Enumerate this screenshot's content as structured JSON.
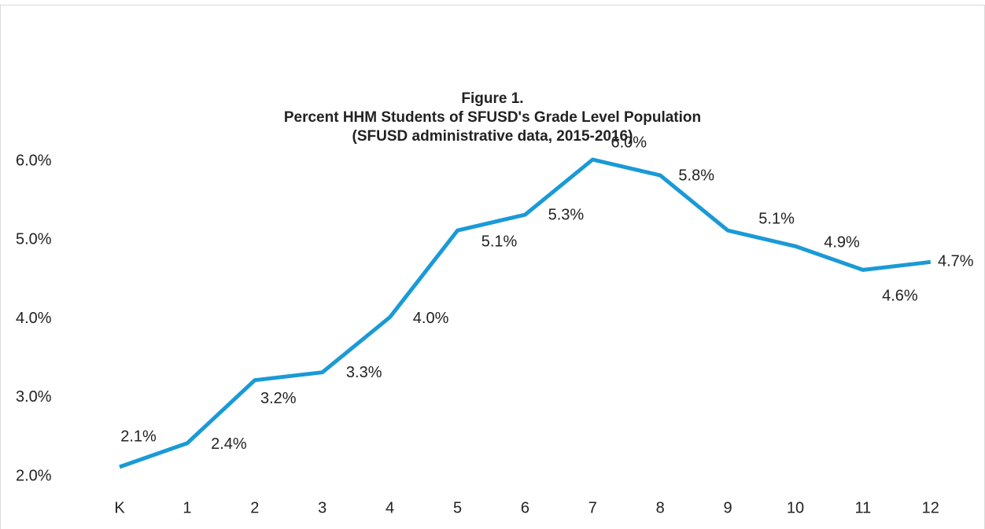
{
  "chart_data": {
    "type": "line",
    "title": [
      "Figure 1.",
      "Percent HHM Students of SFUSD's Grade Level Population",
      "(SFUSD administrative data, 2015-2016)"
    ],
    "categories": [
      "K",
      "1",
      "2",
      "3",
      "4",
      "5",
      "6",
      "7",
      "8",
      "9",
      "10",
      "11",
      "12"
    ],
    "values": [
      2.1,
      2.4,
      3.2,
      3.3,
      4.0,
      5.1,
      5.3,
      6.0,
      5.8,
      5.1,
      4.9,
      4.6,
      4.7
    ],
    "value_labels": [
      "2.1%",
      "2.4%",
      "3.2%",
      "3.3%",
      "4.0%",
      "5.1%",
      "5.3%",
      "6.0%",
      "5.8%",
      "5.1%",
      "4.9%",
      "4.6%",
      "4.7%"
    ],
    "color": "#1a9ad6",
    "ylim": [
      2,
      6
    ],
    "yticks": [
      {
        "value": 2,
        "label": "2.0%"
      },
      {
        "value": 3,
        "label": "3.0%"
      },
      {
        "value": 4,
        "label": "4.0%"
      },
      {
        "value": 5,
        "label": "5.0%"
      },
      {
        "value": 6,
        "label": "6.0%"
      }
    ],
    "grid": false
  }
}
